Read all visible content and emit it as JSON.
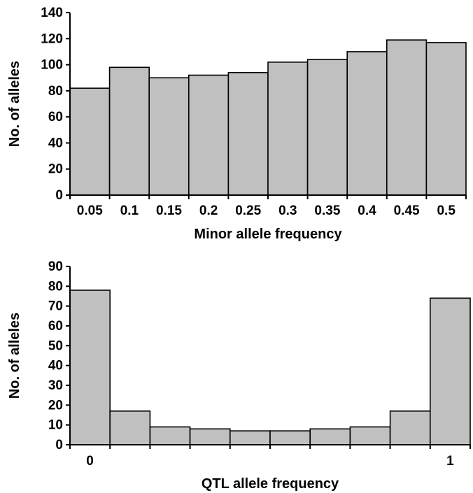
{
  "chart_data": [
    {
      "type": "bar",
      "title": "",
      "xlabel": "Minor allele frequency",
      "ylabel": "No. of alleles",
      "ylim": [
        0,
        140
      ],
      "yticks": [
        "0",
        "20",
        "40",
        "60",
        "80",
        "100",
        "120",
        "140"
      ],
      "categories": [
        "0.05",
        "0.1",
        "0.15",
        "0.2",
        "0.25",
        "0.3",
        "0.35",
        "0.4",
        "0.45",
        "0.5"
      ],
      "values": [
        82,
        98,
        90,
        92,
        94,
        102,
        104,
        110,
        119,
        117
      ],
      "grid": false,
      "bar_color": "#c0c0c0"
    },
    {
      "type": "bar",
      "title": "",
      "xlabel": "QTL allele frequency",
      "ylabel": "No. of alleles",
      "ylim": [
        0,
        90
      ],
      "yticks": [
        "0",
        "10",
        "20",
        "30",
        "40",
        "50",
        "60",
        "70",
        "80",
        "90"
      ],
      "x_tick_labels": [
        "0",
        "1"
      ],
      "values": [
        78,
        17,
        9,
        8,
        7,
        7,
        8,
        9,
        17,
        74
      ],
      "grid": false,
      "bar_color": "#c0c0c0"
    }
  ]
}
